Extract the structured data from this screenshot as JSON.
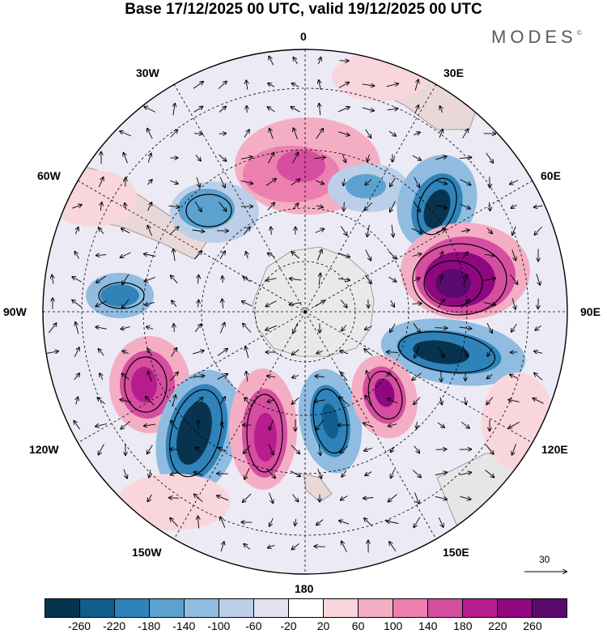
{
  "title": "Base 17/12/2025 00 UTC, valid 19/12/2025 00 UTC",
  "brand": "MODES",
  "brand_mark": "©",
  "longitude_labels": {
    "lon_0": "0",
    "lon_30e": "30E",
    "lon_60e": "60E",
    "lon_90e": "90E",
    "lon_120e": "120E",
    "lon_150e": "150E",
    "lon_180": "180",
    "lon_150w": "150W",
    "lon_120w": "120W",
    "lon_90w": "90W",
    "lon_60w": "60W",
    "lon_30w": "30W"
  },
  "reference_vector": {
    "value": "30"
  },
  "colorbar": {
    "colors": [
      "#08334f",
      "#0f5e8c",
      "#2f83b8",
      "#5ba2cf",
      "#8fbce0",
      "#bccfe8",
      "#e2e3f1",
      "#ffffff",
      "#f9d6dc",
      "#f4aec4",
      "#ec7fb0",
      "#d64ea0",
      "#b71d8c",
      "#8f0880",
      "#5b0a6e"
    ],
    "ticks": [
      "-260",
      "-220",
      "-180",
      "-140",
      "-100",
      "-60",
      "-20",
      "20",
      "60",
      "100",
      "140",
      "180",
      "220",
      "260"
    ]
  }
}
